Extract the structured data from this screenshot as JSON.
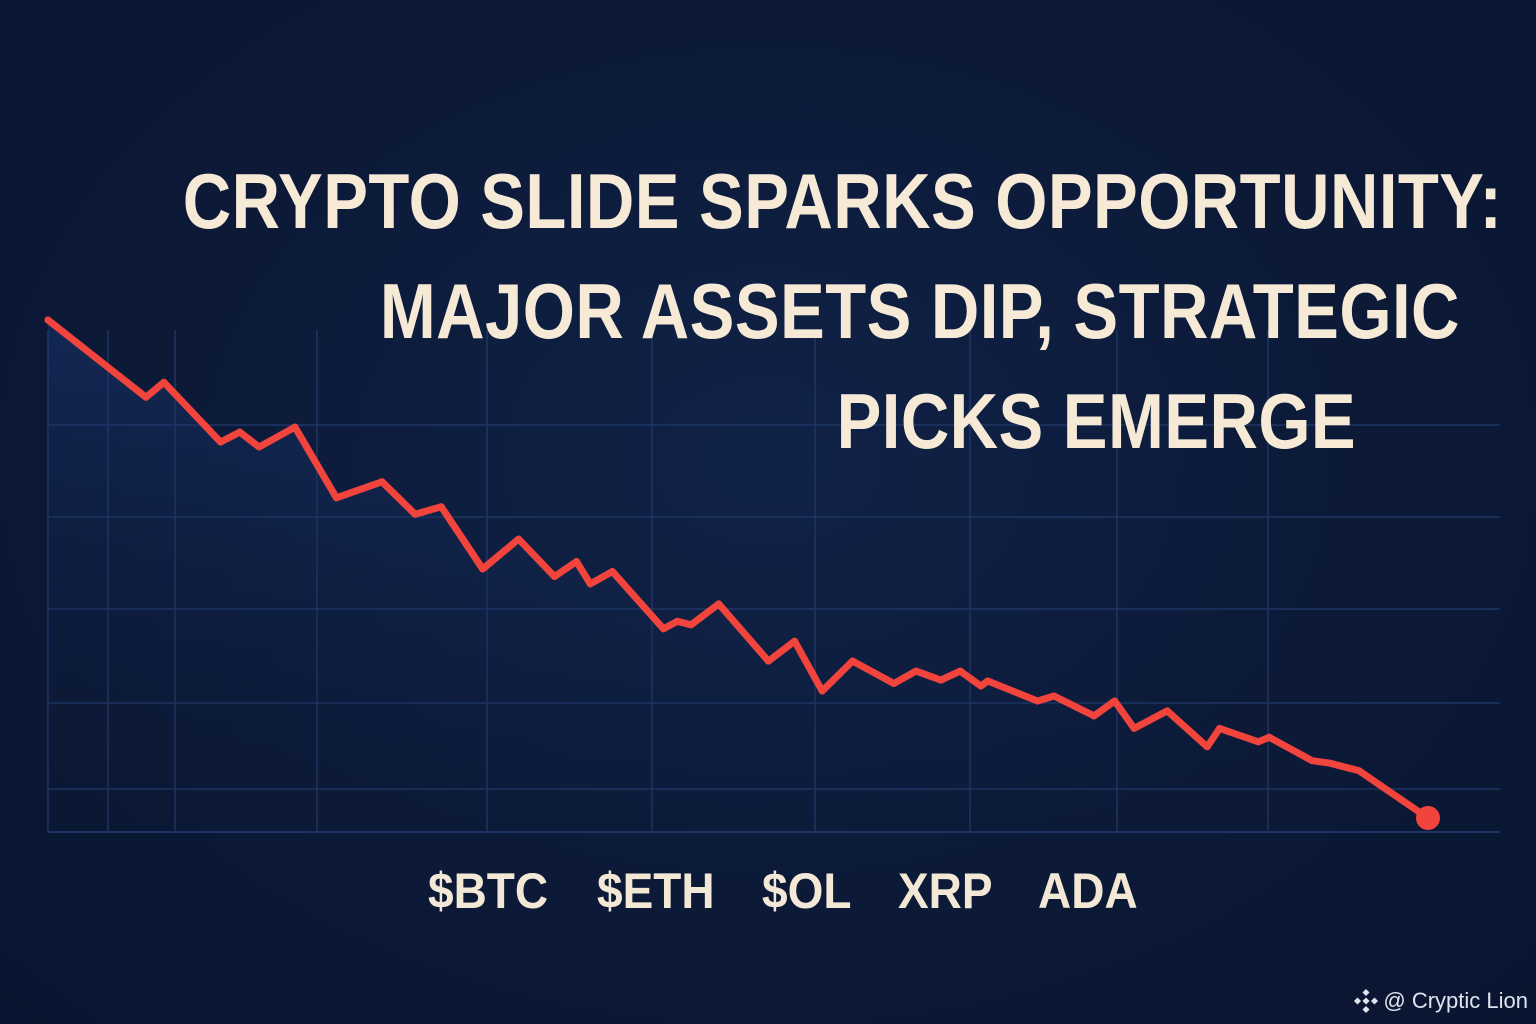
{
  "headline": {
    "line1": "CRYPTO SLIDE SPARKS OPPORTUNITY:",
    "line2": "MAJOR ASSETS DIP, STRATEGIC",
    "line3": "PICKS EMERGE"
  },
  "tickers": [
    "$BTC",
    "$ETH",
    "$OL",
    "XRP",
    "ADA"
  ],
  "watermark": {
    "text": "@ Cryptic Lion",
    "icon": "binance-logo-icon"
  },
  "colors": {
    "background": "#0c1a38",
    "line": "#f0443d",
    "text": "#f6ead7",
    "grid": "#1e3564"
  },
  "chart_data": {
    "type": "line",
    "title": "",
    "xlabel": "",
    "ylabel": "",
    "grid": true,
    "xlim": [
      0,
      100
    ],
    "ylim": [
      0,
      100
    ],
    "series": [
      {
        "color": "#f0443d",
        "end_marker": true,
        "x": [
          0,
          7.1,
          8.4,
          12.5,
          13.9,
          15.3,
          17.9,
          20.9,
          24.2,
          26.6,
          28.5,
          31.5,
          34.1,
          36.7,
          38.3,
          39.3,
          40.9,
          44.6,
          45.6,
          46.6,
          48.6,
          52.2,
          54.1,
          56.1,
          58.3,
          61.3,
          62.9,
          64.7,
          66.1,
          67.6,
          68.1,
          71.7,
          72.9,
          75.8,
          77.3,
          78.7,
          81.1,
          84.0,
          84.9,
          87.7,
          88.5,
          91.6,
          92.9,
          95.0,
          100
        ],
        "y": [
          100,
          84.5,
          87.5,
          75.5,
          77.5,
          74.5,
          78.5,
          64.3,
          67.5,
          61.0,
          62.5,
          50.0,
          56.0,
          48.5,
          51.5,
          47.0,
          49.5,
          38.0,
          39.5,
          38.8,
          43.0,
          31.5,
          35.5,
          25.5,
          31.5,
          27.0,
          29.5,
          27.7,
          29.5,
          26.5,
          27.5,
          23.5,
          24.5,
          20.5,
          23.5,
          18.0,
          21.5,
          14.3,
          18.0,
          15.3,
          16.2,
          11.5,
          11.0,
          9.5,
          0
        ]
      }
    ]
  }
}
